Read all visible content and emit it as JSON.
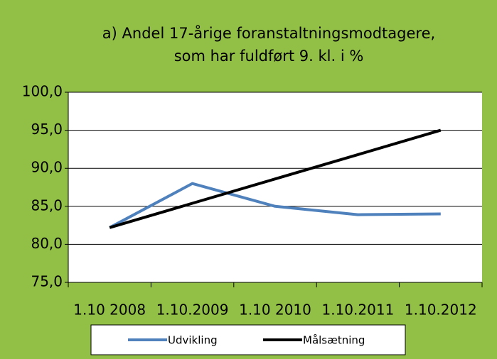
{
  "chart_data": {
    "type": "line",
    "title": [
      "a) Andel 17-årige foranstaltningsmodtagere,",
      "som har fuldført 9. kl. i %"
    ],
    "categories": [
      "1.10 2008",
      "1.10.2009",
      "1.10 2010",
      "1.10.2011",
      "1.10.2012"
    ],
    "series": [
      {
        "name": "Udvikling",
        "color": "#4f81bd",
        "values": [
          82.2,
          88.0,
          85.0,
          83.9,
          84.0
        ]
      },
      {
        "name": "Målsætning",
        "color": "#000000",
        "values": [
          82.2,
          85.4,
          88.6,
          91.8,
          95.0
        ]
      }
    ],
    "ylim": [
      75,
      100
    ],
    "yticks": [
      {
        "value": 75,
        "label": "75,0"
      },
      {
        "value": 80,
        "label": "80,0"
      },
      {
        "value": 85,
        "label": "85,0"
      },
      {
        "value": 90,
        "label": "90,0"
      },
      {
        "value": 95,
        "label": "95,0"
      },
      {
        "value": 100,
        "label": "100,0"
      }
    ],
    "grid": true,
    "legend": "bottom"
  }
}
